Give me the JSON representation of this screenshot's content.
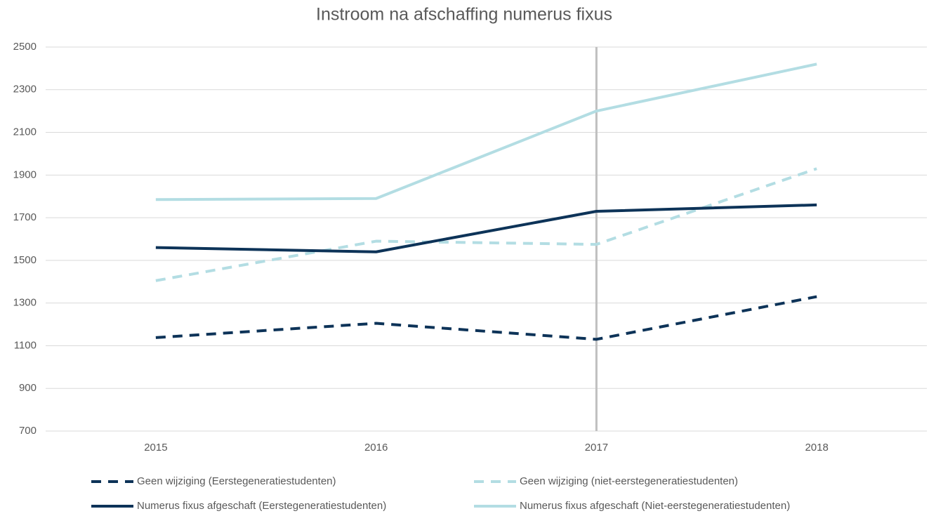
{
  "chart_data": {
    "type": "line",
    "title": "Instroom na afschaffing numerus fixus",
    "categories": [
      "2015",
      "2016",
      "2017",
      "2018"
    ],
    "series": [
      {
        "name": "Geen wijziging (Eerstegeneratiestudenten)",
        "color": "#0d3358",
        "dashed": true,
        "values": [
          1138,
          1205,
          1130,
          1330
        ]
      },
      {
        "name": "Geen wijziging (niet-eerstegeneratiestudenten)",
        "color": "#b3dde3",
        "dashed": true,
        "values": [
          1405,
          1590,
          1575,
          1930
        ]
      },
      {
        "name": "Numerus fixus afgeschaft (Eerstegeneratiestudenten)",
        "color": "#0d3358",
        "dashed": false,
        "values": [
          1560,
          1540,
          1730,
          1760
        ]
      },
      {
        "name": "Numerus fixus afgeschaft (Niet-eerstegeneratiestudenten)",
        "color": "#b3dde3",
        "dashed": false,
        "values": [
          1785,
          1790,
          2200,
          2420
        ]
      }
    ],
    "ylim": [
      700,
      2500
    ],
    "yticks": [
      700,
      900,
      1100,
      1300,
      1500,
      1700,
      1900,
      2100,
      2300,
      2500
    ],
    "grid": true,
    "legend": "bottom"
  }
}
